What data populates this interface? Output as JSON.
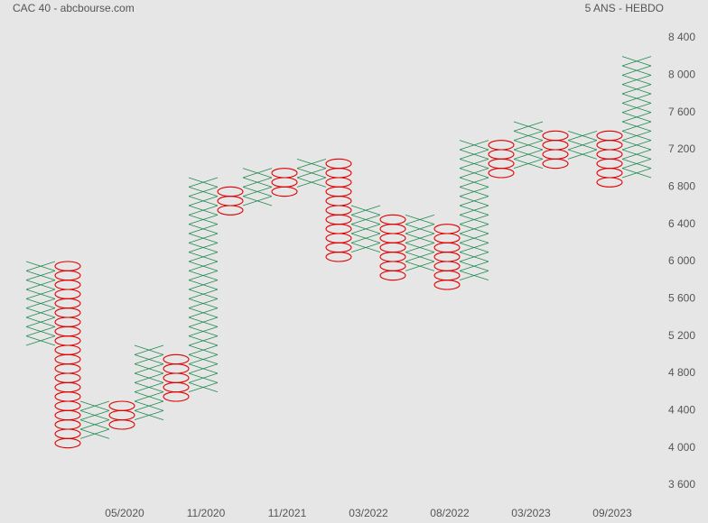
{
  "chart_data": {
    "type": "point-and-figure",
    "title": "CAC 40 - abcbourse.com",
    "subtitle": "5 ANS - HEBDO",
    "box_size": 100,
    "x_color": "#1e8a4e",
    "o_color": "#e00000",
    "ylim": [
      3600,
      8400
    ],
    "yticks": [
      {
        "value": 3600,
        "label": "3 600"
      },
      {
        "value": 4000,
        "label": "4 000"
      },
      {
        "value": 4400,
        "label": "4 400"
      },
      {
        "value": 4800,
        "label": "4 800"
      },
      {
        "value": 5200,
        "label": "5 200"
      },
      {
        "value": 5600,
        "label": "5 600"
      },
      {
        "value": 6000,
        "label": "6 000"
      },
      {
        "value": 6400,
        "label": "6 400"
      },
      {
        "value": 6800,
        "label": "6 800"
      },
      {
        "value": 7200,
        "label": "7 200"
      },
      {
        "value": 7600,
        "label": "7 600"
      },
      {
        "value": 8000,
        "label": "8 000"
      },
      {
        "value": 8400,
        "label": "8 400"
      }
    ],
    "categories": [
      null,
      null,
      null,
      "05/2020",
      null,
      null,
      "11/2020",
      null,
      null,
      "11/2021",
      null,
      null,
      "03/2022",
      null,
      null,
      "08/2022",
      null,
      null,
      "03/2023",
      null,
      null,
      "09/2023",
      null
    ],
    "columns": [
      {
        "kind": "X",
        "low": 5100,
        "high": 5900
      },
      {
        "kind": "O",
        "low": 4000,
        "high": 5900
      },
      {
        "kind": "X",
        "low": 4100,
        "high": 4400
      },
      {
        "kind": "O",
        "low": 4200,
        "high": 4400
      },
      {
        "kind": "X",
        "low": 4300,
        "high": 5000
      },
      {
        "kind": "O",
        "low": 4500,
        "high": 4900
      },
      {
        "kind": "X",
        "low": 4600,
        "high": 6800
      },
      {
        "kind": "O",
        "low": 6500,
        "high": 6700
      },
      {
        "kind": "X",
        "low": 6600,
        "high": 6900
      },
      {
        "kind": "O",
        "low": 6700,
        "high": 6900
      },
      {
        "kind": "X",
        "low": 6800,
        "high": 7000
      },
      {
        "kind": "O",
        "low": 6000,
        "high": 7000
      },
      {
        "kind": "X",
        "low": 6100,
        "high": 6500
      },
      {
        "kind": "O",
        "low": 5800,
        "high": 6400
      },
      {
        "kind": "X",
        "low": 5900,
        "high": 6400
      },
      {
        "kind": "O",
        "low": 5700,
        "high": 6300
      },
      {
        "kind": "X",
        "low": 5800,
        "high": 7200
      },
      {
        "kind": "O",
        "low": 6900,
        "high": 7200
      },
      {
        "kind": "X",
        "low": 7000,
        "high": 7400
      },
      {
        "kind": "O",
        "low": 7000,
        "high": 7300
      },
      {
        "kind": "X",
        "low": 7100,
        "high": 7300
      },
      {
        "kind": "O",
        "low": 6800,
        "high": 7300
      },
      {
        "kind": "X",
        "low": 6900,
        "high": 8100
      }
    ]
  }
}
